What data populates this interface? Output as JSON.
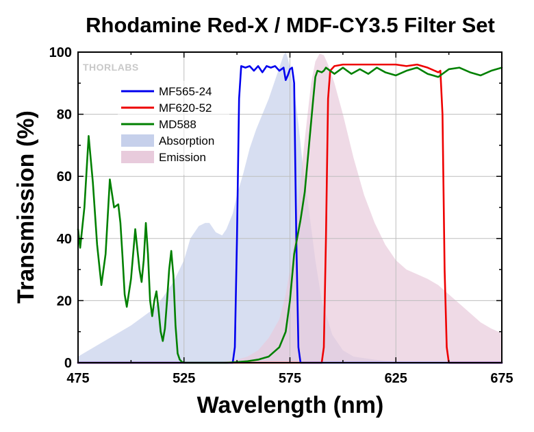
{
  "chart_data": {
    "type": "line",
    "title": "Rhodamine Red-X / MDF-CY3.5 Filter Set",
    "xlabel": "Wavelength (nm)",
    "ylabel": "Transmission (%)",
    "xlim": [
      475,
      675
    ],
    "ylim": [
      0,
      100
    ],
    "x_ticks": [
      475,
      525,
      575,
      625,
      675
    ],
    "y_ticks": [
      0,
      20,
      40,
      60,
      80,
      100
    ],
    "grid": true,
    "legend_position": "top-left",
    "watermark": "THORLABS",
    "series": [
      {
        "name": "MF565-24",
        "kind": "line",
        "color": "#0000ee",
        "x": [
          475,
          548,
          549,
          550,
          551,
          552,
          554,
          556,
          558,
          560,
          562,
          564,
          566,
          568,
          570,
          572,
          573,
          574,
          575,
          576,
          577,
          578,
          579,
          580,
          675
        ],
        "y": [
          0,
          0,
          5,
          40,
          85,
          95.5,
          95,
          95.5,
          94,
          95.5,
          93.5,
          95.5,
          95,
          95.5,
          94,
          95,
          91,
          92.5,
          94.5,
          95,
          90,
          40,
          5,
          0,
          0
        ]
      },
      {
        "name": "MF620-52",
        "kind": "line",
        "color": "#ee0000",
        "x": [
          475,
          590,
          591,
          592,
          593,
          594,
          596,
          600,
          605,
          610,
          615,
          620,
          625,
          630,
          635,
          640,
          645,
          646,
          647,
          648,
          649,
          650,
          675
        ],
        "y": [
          0,
          0,
          5,
          40,
          85,
          94,
          95.5,
          96,
          96,
          96,
          96,
          96,
          96,
          95.5,
          96,
          95,
          93.5,
          94,
          80,
          30,
          5,
          0,
          0
        ]
      },
      {
        "name": "MD588",
        "kind": "line",
        "color": "#008000",
        "x": [
          475,
          476,
          478,
          480,
          482,
          484,
          486,
          488,
          490,
          492,
          494,
          495,
          496,
          497,
          498,
          500,
          502,
          504,
          505,
          506,
          507,
          508,
          509,
          510,
          511,
          512,
          513,
          514,
          515,
          516,
          517,
          518,
          519,
          520,
          521,
          522,
          523,
          524,
          525,
          527,
          530,
          535,
          540,
          545,
          550,
          555,
          560,
          565,
          570,
          573,
          575,
          577,
          580,
          582,
          584,
          586,
          587,
          588,
          590,
          591,
          592,
          594,
          596,
          598,
          600,
          604,
          608,
          612,
          616,
          620,
          625,
          630,
          635,
          640,
          645,
          650,
          655,
          660,
          665,
          670,
          675
        ],
        "y": [
          43,
          37,
          50,
          73,
          58,
          38,
          25,
          35,
          59,
          50,
          51,
          45,
          34,
          22,
          18,
          27,
          43,
          30,
          26,
          33,
          45,
          35,
          20,
          15,
          20,
          23,
          17,
          10,
          7,
          11,
          20,
          30,
          36,
          28,
          12,
          3,
          1,
          0.3,
          0,
          0,
          0,
          0,
          0,
          0,
          0.2,
          0.5,
          1,
          2,
          5,
          10,
          20,
          35,
          46,
          55,
          70,
          85,
          92,
          94,
          93.5,
          94,
          95,
          94,
          93,
          94,
          95,
          93,
          94.5,
          93,
          95,
          93.5,
          92.5,
          94,
          95,
          93,
          92,
          94.5,
          95,
          93.5,
          92.5,
          94,
          95
        ]
      },
      {
        "name": "Absorption",
        "kind": "area",
        "color": "#c6d0eb",
        "x": [
          475,
          480,
          490,
          500,
          510,
          515,
          520,
          525,
          528,
          532,
          535,
          537,
          540,
          543,
          545,
          548,
          550,
          553,
          556,
          559,
          562,
          565,
          568,
          570,
          572,
          573,
          574,
          575,
          577,
          579,
          581,
          584,
          587,
          590,
          595,
          600,
          605,
          610,
          615,
          620,
          625,
          630,
          640,
          650,
          660,
          675
        ],
        "y": [
          2,
          4,
          8,
          12,
          17,
          21,
          26,
          33,
          40,
          44,
          45,
          45,
          42,
          41,
          43,
          48,
          54,
          61,
          69,
          75,
          80,
          85,
          91,
          95,
          99,
          100,
          98,
          95,
          88,
          77,
          64,
          49,
          33,
          20,
          9,
          4,
          2,
          1.5,
          1,
          0.6,
          0.4,
          0.3,
          0.2,
          0.1,
          0.1,
          0
        ]
      },
      {
        "name": "Emission",
        "kind": "area",
        "color": "#e8cbdc",
        "x": [
          475,
          540,
          545,
          550,
          555,
          560,
          565,
          570,
          573,
          576,
          579,
          582,
          585,
          587,
          589,
          591,
          593,
          596,
          600,
          605,
          610,
          615,
          620,
          625,
          630,
          635,
          640,
          645,
          650,
          655,
          660,
          665,
          670,
          675
        ],
        "y": [
          0,
          0,
          0.5,
          1,
          2,
          4,
          8,
          14,
          22,
          34,
          52,
          72,
          90,
          97,
          99.5,
          99,
          96,
          90,
          80,
          66,
          54,
          45,
          38,
          33,
          30,
          28.5,
          27,
          25,
          22,
          19,
          16,
          13,
          11,
          9.5
        ]
      }
    ]
  }
}
